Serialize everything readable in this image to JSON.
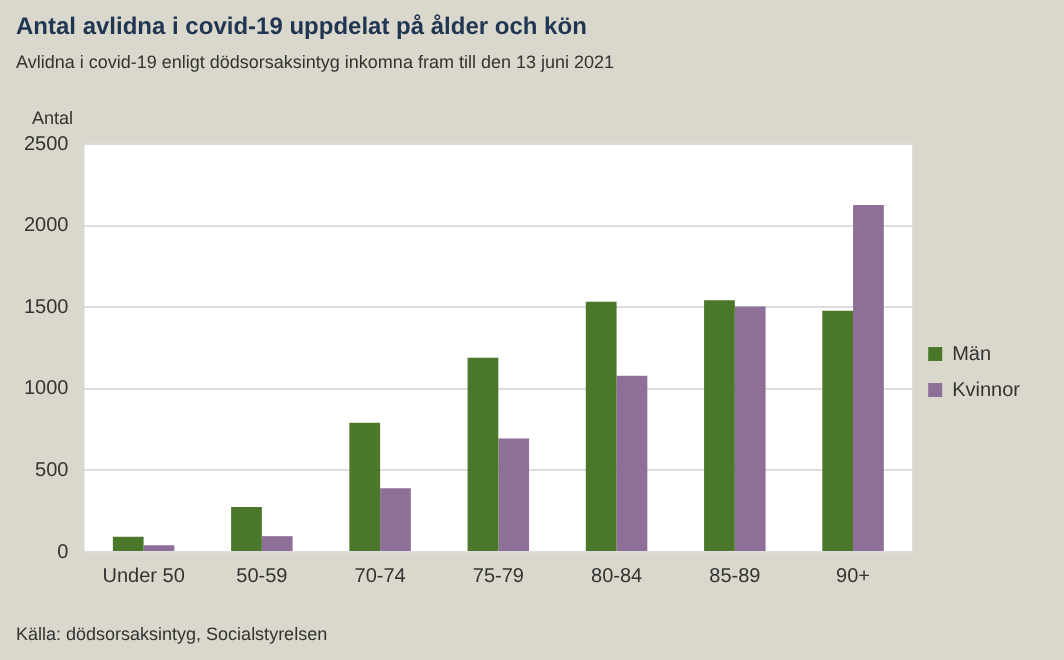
{
  "chart_data": {
    "type": "bar",
    "title": "Antal avlidna i covid-19 uppdelat på ålder och kön",
    "subtitle": "Avlidna i covid-19 enligt dödsorsaksintyg inkomna fram till den 13 juni 2021",
    "ylabel": "Antal",
    "categories": [
      "Under 50",
      "50-59",
      "70-74",
      "75-79",
      "80-84",
      "85-89",
      "90+"
    ],
    "series": [
      {
        "name": "Män",
        "color": "#4a7729",
        "values": [
          93,
          275,
          792,
          1190,
          1533,
          1542,
          1478
        ]
      },
      {
        "name": "Kvinnor",
        "color": "#8e6f98",
        "values": [
          42,
          97,
          390,
          695,
          1080,
          1504,
          2126
        ]
      }
    ],
    "ylim": [
      0,
      2500
    ],
    "yticks": [
      0,
      500,
      1000,
      1500,
      2000,
      2500
    ],
    "grid": "y",
    "legend": "right",
    "annotations": [
      "Källa: dödsorsaksintyg, Socialstyrelsen"
    ]
  }
}
